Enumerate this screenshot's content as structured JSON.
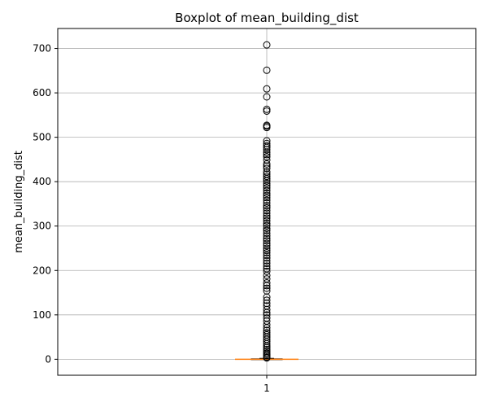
{
  "chart_data": {
    "type": "boxplot",
    "title": "Boxplot of mean_building_dist",
    "xlabel": "",
    "ylabel": "mean_building_dist",
    "categories": [
      "1"
    ],
    "ylim": [
      -36,
      745
    ],
    "yticks": [
      0,
      100,
      200,
      300,
      400,
      500,
      600,
      700
    ],
    "grid": true,
    "box": {
      "q1": 0,
      "median": 0,
      "q3": 1,
      "whisker_low": 0,
      "whisker_high": 2
    },
    "outliers": [
      708,
      651,
      609,
      591,
      563,
      559,
      527,
      525,
      522,
      492,
      486,
      481,
      477,
      472,
      466,
      461,
      456,
      449,
      440,
      435,
      430,
      422,
      417,
      412,
      407,
      402,
      396,
      391,
      386,
      380,
      374,
      369,
      364,
      358,
      352,
      346,
      341,
      335,
      329,
      323,
      318,
      312,
      306,
      301,
      295,
      290,
      284,
      278,
      272,
      267,
      261,
      256,
      250,
      245,
      240,
      234,
      228,
      222,
      216,
      210,
      204,
      198,
      189,
      181,
      172,
      166,
      160,
      154,
      140,
      133,
      126,
      120,
      112,
      105,
      100,
      93,
      86,
      78,
      71,
      65,
      60,
      55,
      50,
      45,
      40,
      35,
      30,
      26,
      22,
      18,
      14,
      11,
      8,
      5,
      3
    ]
  }
}
